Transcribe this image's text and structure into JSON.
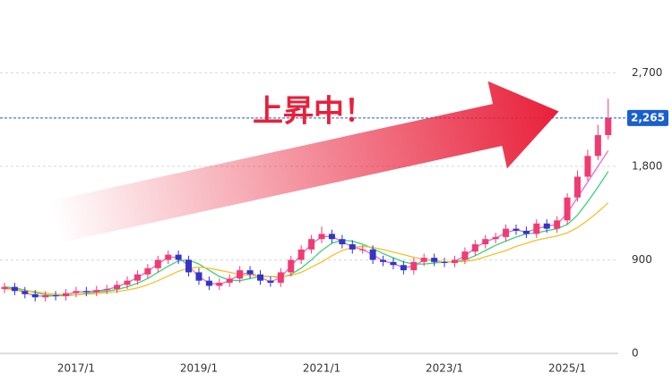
{
  "chart_data": {
    "type": "candlestick",
    "annotation": "上昇中！",
    "x": [
      "2015/11",
      "2016/1",
      "2016/3",
      "2016/5",
      "2016/7",
      "2016/9",
      "2016/11",
      "2017/1",
      "2017/3",
      "2017/5",
      "2017/7",
      "2017/9",
      "2017/11",
      "2018/1",
      "2018/3",
      "2018/5",
      "2018/7",
      "2018/9",
      "2018/11",
      "2019/1",
      "2019/3",
      "2019/5",
      "2019/7",
      "2019/9",
      "2019/11",
      "2020/1",
      "2020/3",
      "2020/5",
      "2020/7",
      "2020/9",
      "2020/11",
      "2021/1",
      "2021/3",
      "2021/5",
      "2021/7",
      "2021/9",
      "2021/11",
      "2022/1",
      "2022/3",
      "2022/5",
      "2022/7",
      "2022/9",
      "2022/11",
      "2023/1",
      "2023/3",
      "2023/5",
      "2023/7",
      "2023/9",
      "2023/11",
      "2024/1",
      "2024/3",
      "2024/5",
      "2024/7",
      "2024/9",
      "2024/11",
      "2025/1",
      "2025/3",
      "2025/5",
      "2025/7",
      "2025/9"
    ],
    "xticks": [
      "2017/1",
      "2019/1",
      "2021/1",
      "2023/1",
      "2025/1"
    ],
    "open": [
      620,
      640,
      600,
      570,
      540,
      560,
      550,
      580,
      600,
      590,
      610,
      620,
      660,
      700,
      760,
      820,
      900,
      950,
      900,
      780,
      700,
      650,
      680,
      720,
      800,
      760,
      700,
      680,
      780,
      900,
      1000,
      1100,
      1150,
      1100,
      1050,
      1000,
      1000,
      900,
      880,
      850,
      800,
      880,
      920,
      880,
      870,
      900,
      980,
      1050,
      1100,
      1120,
      1200,
      1180,
      1150,
      1250,
      1200,
      1280,
      1500,
      1700,
      1900,
      2100
    ],
    "high": [
      680,
      680,
      640,
      610,
      600,
      600,
      620,
      640,
      640,
      650,
      660,
      700,
      740,
      800,
      860,
      940,
      990,
      990,
      940,
      820,
      740,
      720,
      760,
      840,
      840,
      800,
      740,
      820,
      940,
      1040,
      1140,
      1220,
      1190,
      1140,
      1090,
      1040,
      1040,
      940,
      920,
      890,
      920,
      960,
      960,
      920,
      940,
      1020,
      1090,
      1140,
      1160,
      1240,
      1240,
      1220,
      1290,
      1290,
      1320,
      1540,
      1760,
      1960,
      2200,
      2450
    ],
    "low": [
      580,
      560,
      530,
      500,
      500,
      510,
      510,
      540,
      550,
      550,
      570,
      580,
      620,
      660,
      720,
      780,
      860,
      860,
      740,
      660,
      610,
      610,
      640,
      680,
      720,
      660,
      640,
      640,
      740,
      860,
      960,
      1060,
      1060,
      1010,
      960,
      960,
      860,
      840,
      810,
      760,
      760,
      840,
      840,
      830,
      830,
      860,
      940,
      1010,
      1060,
      1080,
      1140,
      1110,
      1110,
      1160,
      1160,
      1240,
      1460,
      1660,
      1860,
      2060
    ],
    "close": [
      640,
      600,
      570,
      540,
      560,
      550,
      580,
      600,
      590,
      610,
      620,
      660,
      700,
      760,
      820,
      900,
      950,
      900,
      780,
      700,
      650,
      680,
      720,
      800,
      760,
      700,
      680,
      780,
      900,
      1000,
      1100,
      1150,
      1100,
      1050,
      1000,
      1000,
      900,
      880,
      850,
      800,
      880,
      920,
      880,
      870,
      900,
      980,
      1050,
      1100,
      1120,
      1200,
      1180,
      1150,
      1250,
      1200,
      1280,
      1500,
      1700,
      1900,
      2100,
      2265
    ],
    "up_color": "#f23a72",
    "down_color": "#3434c8",
    "lines": [
      {
        "color": "#e46ad6",
        "values": [
          630,
          620,
          585,
          555,
          550,
          555,
          565,
          590,
          595,
          600,
          615,
          640,
          680,
          730,
          790,
          860,
          925,
          925,
          840,
          740,
          675,
          665,
          700,
          760,
          780,
          730,
          690,
          730,
          840,
          950,
          1050,
          1125,
          1125,
          1075,
          1025,
          1000,
          950,
          890,
          865,
          825,
          840,
          900,
          900,
          875,
          885,
          940,
          1015,
          1075,
          1110,
          1160,
          1190,
          1165,
          1200,
          1225,
          1240,
          1350,
          1500,
          1650,
          1800,
          1950
        ]
      },
      {
        "color": "#3ccf7a",
        "values": [
          640,
          630,
          610,
          585,
          565,
          555,
          555,
          565,
          580,
          590,
          600,
          615,
          640,
          675,
          720,
          780,
          840,
          890,
          900,
          860,
          800,
          740,
          705,
          700,
          720,
          740,
          740,
          730,
          760,
          820,
          900,
          990,
          1060,
          1090,
          1080,
          1050,
          1010,
          960,
          920,
          880,
          860,
          860,
          870,
          880,
          880,
          900,
          940,
          990,
          1040,
          1080,
          1120,
          1150,
          1160,
          1180,
          1200,
          1240,
          1330,
          1460,
          1600,
          1750
        ]
      },
      {
        "color": "#f5c02a",
        "values": [
          620,
          615,
          605,
          595,
          580,
          570,
          565,
          565,
          570,
          575,
          585,
          595,
          610,
          630,
          660,
          700,
          745,
          790,
          820,
          830,
          820,
          800,
          780,
          760,
          750,
          745,
          740,
          740,
          750,
          780,
          830,
          880,
          940,
          990,
          1020,
          1030,
          1020,
          1000,
          975,
          950,
          925,
          905,
          890,
          880,
          880,
          885,
          900,
          930,
          960,
          990,
          1030,
          1060,
          1090,
          1110,
          1130,
          1160,
          1210,
          1280,
          1360,
          1450
        ]
      }
    ],
    "current": {
      "value": 2265,
      "label": "2,265",
      "color": "#1a5fd0"
    },
    "ylim": [
      0,
      3400
    ],
    "yticks": [
      0,
      {
        "value": 900,
        "label": "900"
      },
      {
        "value": 1800,
        "label": "1,800"
      },
      {
        "value": 2700,
        "label": "2,700"
      }
    ],
    "grid": true
  }
}
